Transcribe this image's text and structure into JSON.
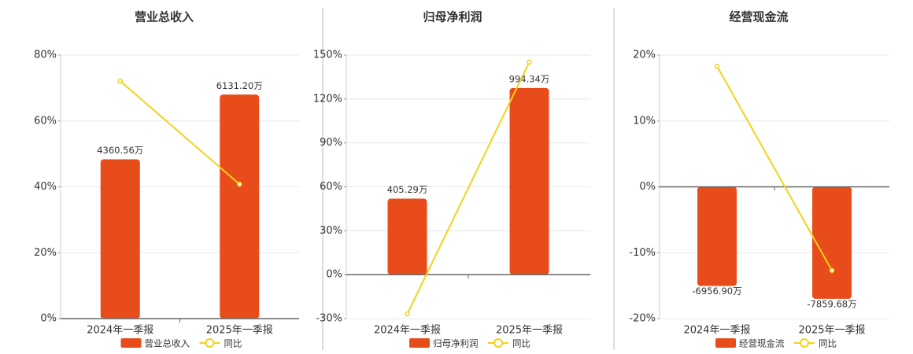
{
  "chart_data": [
    {
      "type": "bar",
      "title": "营业总收入",
      "categories": [
        "2024年一季报",
        "2025年一季报"
      ],
      "series": [
        {
          "name": "营业总收入",
          "color": "#e84c1a",
          "values": [
            4360.56,
            6131.2
          ],
          "value_labels": [
            "4360.56万",
            "6131.20万"
          ]
        },
        {
          "name": "同比",
          "type": "line",
          "color": "#f2d21b",
          "values": [
            72.1,
            40.8
          ]
        }
      ],
      "ylim": [
        0,
        80
      ],
      "yticks": [
        {
          "value": 0,
          "label": "0%"
        },
        {
          "value": 20,
          "label": "20%"
        },
        {
          "value": 40,
          "label": "40%"
        },
        {
          "value": 60,
          "label": "60%"
        },
        {
          "value": 80,
          "label": "80%"
        }
      ],
      "grid": true
    },
    {
      "type": "bar",
      "title": "归母净利润",
      "categories": [
        "2024年一季报",
        "2025年一季报"
      ],
      "series": [
        {
          "name": "归母净利润",
          "color": "#e84c1a",
          "values": [
            405.29,
            994.34
          ],
          "value_labels": [
            "405.29万",
            "994.34万"
          ]
        },
        {
          "name": "同比",
          "type": "line",
          "color": "#f2d21b",
          "values": [
            -26.8,
            145.2
          ]
        }
      ],
      "ylim": [
        -30,
        150
      ],
      "yticks": [
        {
          "value": -30,
          "label": "-30%"
        },
        {
          "value": 0,
          "label": "0%"
        },
        {
          "value": 30,
          "label": "30%"
        },
        {
          "value": 60,
          "label": "60%"
        },
        {
          "value": 90,
          "label": "90%"
        },
        {
          "value": 120,
          "label": "120%"
        },
        {
          "value": 150,
          "label": "150%"
        }
      ],
      "grid": true
    },
    {
      "type": "bar",
      "title": "经营现金流",
      "categories": [
        "2024年一季报",
        "2025年一季报"
      ],
      "series": [
        {
          "name": "经营现金流",
          "color": "#e84c1a",
          "values": [
            -6956.9,
            -7859.68
          ],
          "value_labels": [
            "-6956.90万",
            "-7859.68万"
          ]
        },
        {
          "name": "同比",
          "type": "line",
          "color": "#f2d21b",
          "values": [
            18.3,
            -12.7
          ]
        }
      ],
      "ylim": [
        -20,
        20
      ],
      "yticks": [
        {
          "value": -20,
          "label": "-20%"
        },
        {
          "value": -10,
          "label": "-10%"
        },
        {
          "value": 0,
          "label": "0%"
        },
        {
          "value": 10,
          "label": "10%"
        },
        {
          "value": 20,
          "label": "20%"
        }
      ],
      "grid": true
    }
  ]
}
